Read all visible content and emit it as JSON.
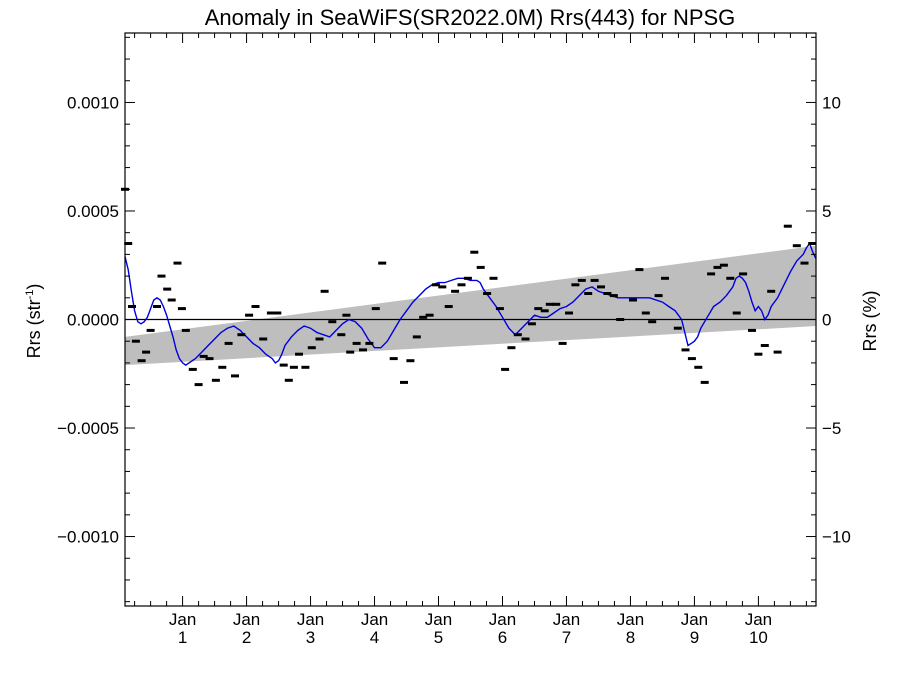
{
  "chart_data": {
    "type": "line",
    "title": "Anomaly in SeaWiFS(SR2022.0M) Rrs(443) for NPSG",
    "ylabel_left": "Rrs (str",
    "ylabel_left_sup": "-1",
    "ylabel_left_close": ")",
    "ylabel_right": "Rrs (%)",
    "xlim": [
      0.1,
      10.9
    ],
    "ylim": [
      -0.00132,
      0.00132
    ],
    "ylim_right": [
      -13.2,
      13.2
    ],
    "y_ticks": [
      {
        "value": 0.001,
        "label": "0.0010"
      },
      {
        "value": 0.0005,
        "label": "0.0005"
      },
      {
        "value": 0.0,
        "label": "0.0000"
      },
      {
        "value": -0.0005,
        "label": "−0.0005"
      },
      {
        "value": -0.001,
        "label": "−0.0010"
      }
    ],
    "y2_ticks": [
      {
        "value": 10,
        "label": "10"
      },
      {
        "value": 5,
        "label": "5"
      },
      {
        "value": 0,
        "label": "0"
      },
      {
        "value": -5,
        "label": "−5"
      },
      {
        "value": -10,
        "label": "−10"
      }
    ],
    "x_ticks": [
      {
        "value": 1,
        "label_top": "Jan",
        "label_bottom": "1"
      },
      {
        "value": 2,
        "label_top": "Jan",
        "label_bottom": "2"
      },
      {
        "value": 3,
        "label_top": "Jan",
        "label_bottom": "3"
      },
      {
        "value": 4,
        "label_top": "Jan",
        "label_bottom": "4"
      },
      {
        "value": 5,
        "label_top": "Jan",
        "label_bottom": "5"
      },
      {
        "value": 6,
        "label_top": "Jan",
        "label_bottom": "6"
      },
      {
        "value": 7,
        "label_top": "Jan",
        "label_bottom": "7"
      },
      {
        "value": 8,
        "label_top": "Jan",
        "label_bottom": "8"
      },
      {
        "value": 9,
        "label_top": "Jan",
        "label_bottom": "9"
      },
      {
        "value": 10,
        "label_top": "Jan",
        "label_bottom": "10"
      }
    ],
    "zero_line": 0,
    "trend_band": {
      "x_start": 0.1,
      "lower_start": -0.00021,
      "upper_start": -8e-05,
      "x_end": 10.9,
      "lower_end": -3e-05,
      "upper_end": 0.00034,
      "color": "#bebebe"
    },
    "smoothed_color": "#0000dd",
    "marker_color": "#000000",
    "monthly_anomalies": [
      {
        "x": 0.1,
        "y": 0.0006
      },
      {
        "x": 0.15,
        "y": 0.00035
      },
      {
        "x": 0.21,
        "y": 6e-05
      },
      {
        "x": 0.27,
        "y": -0.0001
      },
      {
        "x": 0.36,
        "y": -0.00019
      },
      {
        "x": 0.43,
        "y": -0.00015
      },
      {
        "x": 0.5,
        "y": -5e-05
      },
      {
        "x": 0.6,
        "y": 6e-05
      },
      {
        "x": 0.67,
        "y": 0.0002
      },
      {
        "x": 0.76,
        "y": 0.00014
      },
      {
        "x": 0.83,
        "y": 9e-05
      },
      {
        "x": 0.92,
        "y": 0.00026
      },
      {
        "x": 0.99,
        "y": 5e-05
      },
      {
        "x": 1.05,
        "y": -5e-05
      },
      {
        "x": 1.16,
        "y": -0.00023
      },
      {
        "x": 1.25,
        "y": -0.0003
      },
      {
        "x": 1.33,
        "y": -0.00017
      },
      {
        "x": 1.42,
        "y": -0.00018
      },
      {
        "x": 1.52,
        "y": -0.00028
      },
      {
        "x": 1.62,
        "y": -0.00022
      },
      {
        "x": 1.72,
        "y": -0.00011
      },
      {
        "x": 1.82,
        "y": -0.00026
      },
      {
        "x": 1.92,
        "y": -7e-05
      },
      {
        "x": 2.04,
        "y": 2e-05
      },
      {
        "x": 2.14,
        "y": 6e-05
      },
      {
        "x": 2.26,
        "y": -9e-05
      },
      {
        "x": 2.38,
        "y": 3e-05
      },
      {
        "x": 2.48,
        "y": 3e-05
      },
      {
        "x": 2.58,
        "y": -0.00021
      },
      {
        "x": 2.66,
        "y": -0.00028
      },
      {
        "x": 2.74,
        "y": -0.00022
      },
      {
        "x": 2.82,
        "y": -0.00016
      },
      {
        "x": 2.92,
        "y": -0.00022
      },
      {
        "x": 3.02,
        "y": -0.00013
      },
      {
        "x": 3.14,
        "y": -9e-05
      },
      {
        "x": 3.22,
        "y": 0.00013
      },
      {
        "x": 3.34,
        "y": -1e-05
      },
      {
        "x": 3.48,
        "y": -7e-05
      },
      {
        "x": 3.56,
        "y": 2e-05
      },
      {
        "x": 3.62,
        "y": -0.00015
      },
      {
        "x": 3.72,
        "y": -0.00011
      },
      {
        "x": 3.82,
        "y": -0.00014
      },
      {
        "x": 3.92,
        "y": -0.00011
      },
      {
        "x": 4.02,
        "y": 5e-05
      },
      {
        "x": 4.12,
        "y": 0.00026
      },
      {
        "x": 4.3,
        "y": -0.00018
      },
      {
        "x": 4.46,
        "y": -0.00029
      },
      {
        "x": 4.56,
        "y": -0.00019
      },
      {
        "x": 4.66,
        "y": -8e-05
      },
      {
        "x": 4.76,
        "y": 1e-05
      },
      {
        "x": 4.86,
        "y": 2e-05
      },
      {
        "x": 4.96,
        "y": 0.00016
      },
      {
        "x": 5.06,
        "y": 0.00015
      },
      {
        "x": 5.16,
        "y": 6e-05
      },
      {
        "x": 5.26,
        "y": 0.00013
      },
      {
        "x": 5.36,
        "y": 0.00016
      },
      {
        "x": 5.46,
        "y": 0.00019
      },
      {
        "x": 5.56,
        "y": 0.00031
      },
      {
        "x": 5.66,
        "y": 0.00024
      },
      {
        "x": 5.76,
        "y": 0.00012
      },
      {
        "x": 5.86,
        "y": 0.00019
      },
      {
        "x": 5.96,
        "y": 5e-05
      },
      {
        "x": 6.04,
        "y": -0.00023
      },
      {
        "x": 6.14,
        "y": -0.00013
      },
      {
        "x": 6.24,
        "y": -7e-05
      },
      {
        "x": 6.36,
        "y": -9e-05
      },
      {
        "x": 6.46,
        "y": -2e-05
      },
      {
        "x": 6.56,
        "y": 5e-05
      },
      {
        "x": 6.66,
        "y": 4e-05
      },
      {
        "x": 6.74,
        "y": 7e-05
      },
      {
        "x": 6.84,
        "y": 7e-05
      },
      {
        "x": 6.94,
        "y": -0.00011
      },
      {
        "x": 7.04,
        "y": 3e-05
      },
      {
        "x": 7.14,
        "y": 0.00016
      },
      {
        "x": 7.24,
        "y": 0.00018
      },
      {
        "x": 7.34,
        "y": 0.00012
      },
      {
        "x": 7.44,
        "y": 0.00018
      },
      {
        "x": 7.54,
        "y": 0.00015
      },
      {
        "x": 7.64,
        "y": 0.00012
      },
      {
        "x": 7.74,
        "y": 0.00011
      },
      {
        "x": 7.84,
        "y": 0.0
      },
      {
        "x": 8.04,
        "y": 9e-05
      },
      {
        "x": 8.14,
        "y": 0.00023
      },
      {
        "x": 8.24,
        "y": 3e-05
      },
      {
        "x": 8.34,
        "y": -1e-05
      },
      {
        "x": 8.44,
        "y": 0.00011
      },
      {
        "x": 8.54,
        "y": 0.00019
      },
      {
        "x": 8.74,
        "y": -4e-05
      },
      {
        "x": 8.86,
        "y": -0.00014
      },
      {
        "x": 8.96,
        "y": -0.00018
      },
      {
        "x": 9.06,
        "y": -0.00022
      },
      {
        "x": 9.16,
        "y": -0.00029
      },
      {
        "x": 9.26,
        "y": 0.00021
      },
      {
        "x": 9.36,
        "y": 0.00024
      },
      {
        "x": 9.46,
        "y": 0.00025
      },
      {
        "x": 9.56,
        "y": 0.00019
      },
      {
        "x": 9.66,
        "y": 3e-05
      },
      {
        "x": 9.76,
        "y": 0.00021
      },
      {
        "x": 9.9,
        "y": -5e-05
      },
      {
        "x": 10.0,
        "y": -0.00016
      },
      {
        "x": 10.1,
        "y": -0.00012
      },
      {
        "x": 10.2,
        "y": 0.00013
      },
      {
        "x": 10.3,
        "y": -0.00015
      },
      {
        "x": 10.46,
        "y": 0.00043
      },
      {
        "x": 10.6,
        "y": 0.00034
      },
      {
        "x": 10.72,
        "y": 0.00026
      },
      {
        "x": 10.84,
        "y": 0.00035
      }
    ],
    "smoothed_series": [
      [
        0.1,
        0.00029
      ],
      [
        0.15,
        0.00023
      ],
      [
        0.2,
        0.00013
      ],
      [
        0.25,
        4e-05
      ],
      [
        0.3,
        -1e-05
      ],
      [
        0.35,
        -2e-05
      ],
      [
        0.4,
        -1e-05
      ],
      [
        0.45,
        1e-05
      ],
      [
        0.5,
        5e-05
      ],
      [
        0.55,
        9e-05
      ],
      [
        0.6,
        0.0001
      ],
      [
        0.65,
        9e-05
      ],
      [
        0.7,
        6e-05
      ],
      [
        0.75,
        2e-05
      ],
      [
        0.8,
        -3e-05
      ],
      [
        0.85,
        -8e-05
      ],
      [
        0.9,
        -0.00014
      ],
      [
        0.95,
        -0.00018
      ],
      [
        1.0,
        -0.0002
      ],
      [
        1.05,
        -0.00021
      ],
      [
        1.1,
        -0.0002
      ],
      [
        1.2,
        -0.00018
      ],
      [
        1.3,
        -0.00015
      ],
      [
        1.4,
        -0.00012
      ],
      [
        1.5,
        -9e-05
      ],
      [
        1.6,
        -6e-05
      ],
      [
        1.7,
        -4e-05
      ],
      [
        1.8,
        -3e-05
      ],
      [
        1.9,
        -5e-05
      ],
      [
        2.0,
        -8e-05
      ],
      [
        2.1,
        -0.00011
      ],
      [
        2.2,
        -0.00013
      ],
      [
        2.3,
        -0.00016
      ],
      [
        2.4,
        -0.00018
      ],
      [
        2.45,
        -0.0002
      ],
      [
        2.5,
        -0.00019
      ],
      [
        2.55,
        -0.00016
      ],
      [
        2.6,
        -0.00012
      ],
      [
        2.7,
        -8e-05
      ],
      [
        2.8,
        -5e-05
      ],
      [
        2.9,
        -3e-05
      ],
      [
        3.0,
        -4e-05
      ],
      [
        3.1,
        -6e-05
      ],
      [
        3.2,
        -7e-05
      ],
      [
        3.3,
        -8e-05
      ],
      [
        3.4,
        -5e-05
      ],
      [
        3.5,
        -2e-05
      ],
      [
        3.6,
        0.0
      ],
      [
        3.7,
        -1e-05
      ],
      [
        3.8,
        -4e-05
      ],
      [
        3.9,
        -9e-05
      ],
      [
        4.0,
        -0.00013
      ],
      [
        4.1,
        -0.00013
      ],
      [
        4.2,
        -0.0001
      ],
      [
        4.3,
        -5e-05
      ],
      [
        4.4,
        0.0
      ],
      [
        4.5,
        4e-05
      ],
      [
        4.6,
        8e-05
      ],
      [
        4.7,
        0.00011
      ],
      [
        4.8,
        0.00014
      ],
      [
        4.9,
        0.00016
      ],
      [
        5.0,
        0.00017
      ],
      [
        5.1,
        0.00017
      ],
      [
        5.2,
        0.00018
      ],
      [
        5.3,
        0.00019
      ],
      [
        5.4,
        0.00019
      ],
      [
        5.5,
        0.00018
      ],
      [
        5.6,
        0.00018
      ],
      [
        5.65,
        0.00017
      ],
      [
        5.7,
        0.00014
      ],
      [
        5.8,
        0.0001
      ],
      [
        5.9,
        6e-05
      ],
      [
        6.0,
        1e-05
      ],
      [
        6.1,
        -4e-05
      ],
      [
        6.2,
        -7e-05
      ],
      [
        6.3,
        -4e-05
      ],
      [
        6.4,
        -1e-05
      ],
      [
        6.5,
        2e-05
      ],
      [
        6.6,
        1e-05
      ],
      [
        6.7,
        1e-05
      ],
      [
        6.8,
        3e-05
      ],
      [
        6.9,
        5e-05
      ],
      [
        7.0,
        6e-05
      ],
      [
        7.1,
        8e-05
      ],
      [
        7.2,
        0.00011
      ],
      [
        7.3,
        0.00014
      ],
      [
        7.4,
        0.00015
      ],
      [
        7.5,
        0.00013
      ],
      [
        7.6,
        0.00012
      ],
      [
        7.7,
        0.00011
      ],
      [
        7.8,
        0.0001
      ],
      [
        7.9,
        0.0001
      ],
      [
        8.0,
        0.0001
      ],
      [
        8.1,
        0.0001
      ],
      [
        8.2,
        0.0001
      ],
      [
        8.3,
        0.0001
      ],
      [
        8.4,
        9e-05
      ],
      [
        8.5,
        8e-05
      ],
      [
        8.6,
        6e-05
      ],
      [
        8.7,
        4e-05
      ],
      [
        8.8,
        0.0
      ],
      [
        8.85,
        -6e-05
      ],
      [
        8.9,
        -0.00012
      ],
      [
        8.95,
        -0.00011
      ],
      [
        9.0,
        -0.0001
      ],
      [
        9.05,
        -8e-05
      ],
      [
        9.1,
        -4e-05
      ],
      [
        9.2,
        1e-05
      ],
      [
        9.3,
        6e-05
      ],
      [
        9.4,
        8e-05
      ],
      [
        9.5,
        0.00011
      ],
      [
        9.6,
        0.00015
      ],
      [
        9.65,
        0.00019
      ],
      [
        9.7,
        0.0002
      ],
      [
        9.75,
        0.00019
      ],
      [
        9.8,
        0.00017
      ],
      [
        9.85,
        0.00013
      ],
      [
        9.9,
        8e-05
      ],
      [
        9.95,
        4e-05
      ],
      [
        10.0,
        6e-05
      ],
      [
        10.05,
        4e-05
      ],
      [
        10.1,
        0.0
      ],
      [
        10.15,
        2e-05
      ],
      [
        10.2,
        6e-05
      ],
      [
        10.3,
        0.0001
      ],
      [
        10.4,
        0.00016
      ],
      [
        10.5,
        0.00022
      ],
      [
        10.6,
        0.00027
      ],
      [
        10.7,
        0.0003
      ],
      [
        10.75,
        0.00033
      ],
      [
        10.8,
        0.00035
      ],
      [
        10.85,
        0.00031
      ],
      [
        10.9,
        0.00028
      ]
    ]
  }
}
